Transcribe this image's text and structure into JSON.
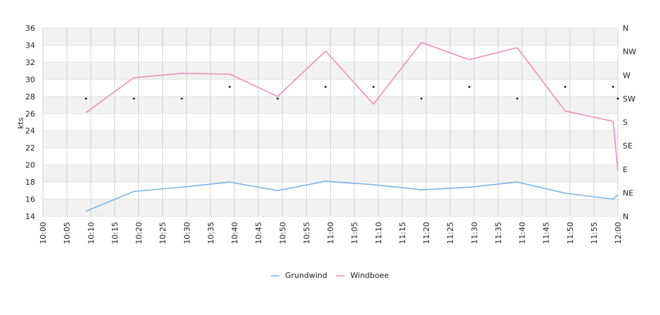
{
  "chart_data": {
    "type": "line",
    "ylabel": "kts",
    "ylim": [
      14,
      36
    ],
    "y_ticks": [
      "14",
      "16",
      "18",
      "20",
      "22",
      "24",
      "26",
      "28",
      "30",
      "32",
      "34",
      "36"
    ],
    "x_ticks": [
      "10:00",
      "10:05",
      "10:10",
      "10:15",
      "10:20",
      "10:25",
      "10:30",
      "10:35",
      "10:40",
      "10:45",
      "10:50",
      "10:55",
      "11:00",
      "11:05",
      "11:10",
      "11:15",
      "11:20",
      "11:25",
      "11:30",
      "11:35",
      "11:40",
      "11:45",
      "11:50",
      "11:55",
      "12:00"
    ],
    "right_axis_labels": [
      "N",
      "NE",
      "E",
      "SE",
      "S",
      "SW",
      "W",
      "NW",
      "N"
    ],
    "grid": true,
    "legend_position": "bottom-center",
    "series": [
      {
        "name": "Grundwind",
        "color": "#7ab4ec",
        "x": [
          "10:09",
          "10:19",
          "10:29",
          "10:39",
          "10:49",
          "10:59",
          "11:09",
          "11:19",
          "11:29",
          "11:39",
          "11:49",
          "11:59",
          "12:00"
        ],
        "values": [
          14.6,
          16.9,
          17.4,
          18.0,
          17.0,
          18.1,
          17.7,
          17.1,
          17.4,
          18.0,
          16.7,
          16.0,
          16.5
        ]
      },
      {
        "name": "Windboee",
        "color": "#f08cbc",
        "x": [
          "10:09",
          "10:19",
          "10:29",
          "10:39",
          "10:49",
          "10:59",
          "11:09",
          "11:19",
          "11:29",
          "11:39",
          "11:49",
          "11:59",
          "12:00"
        ],
        "values": [
          26.1,
          30.2,
          30.7,
          30.6,
          28.0,
          33.3,
          27.1,
          34.3,
          32.3,
          33.7,
          26.3,
          25.1,
          19.3
        ]
      }
    ],
    "direction_markers": {
      "x": [
        "10:09",
        "10:19",
        "10:29",
        "10:39",
        "10:49",
        "10:59",
        "11:09",
        "11:19",
        "11:29",
        "11:39",
        "11:49",
        "11:59",
        "12:00"
      ],
      "directions": [
        "SW",
        "SW",
        "SW",
        "WSW",
        "SW",
        "WSW",
        "WSW",
        "SW",
        "WSW",
        "SW",
        "WSW",
        "WSW",
        "SW"
      ]
    }
  }
}
